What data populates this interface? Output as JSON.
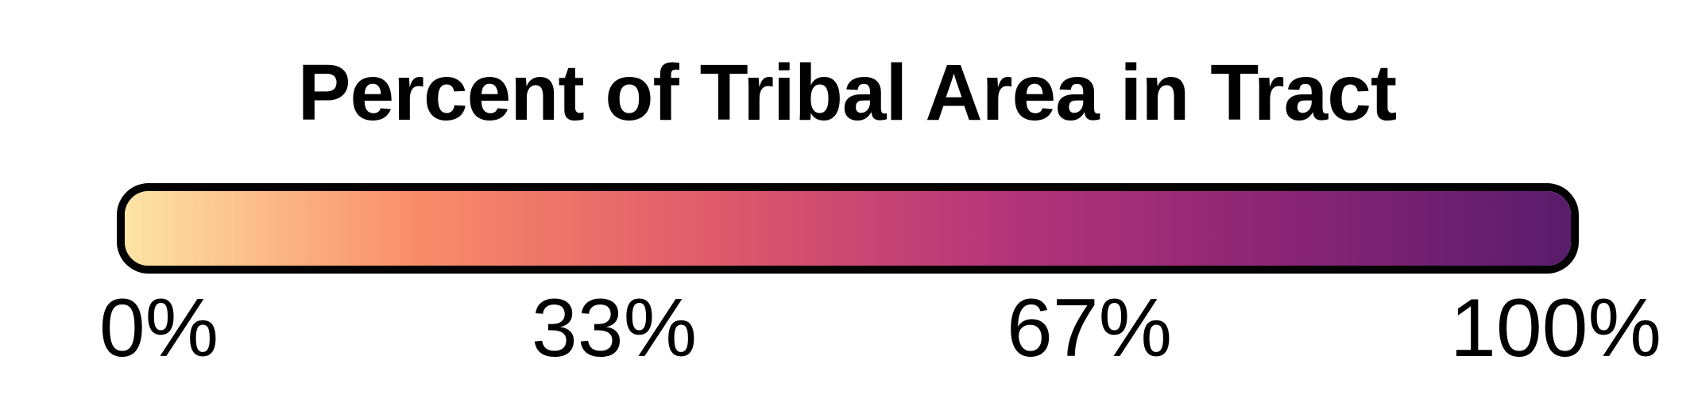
{
  "legend": {
    "title": "Percent of Tribal Area in Tract",
    "min_label": "0%",
    "max_label": "100%",
    "ticks": [
      "0%",
      "33%",
      "67%",
      "100%"
    ],
    "gradient_stops": [
      {
        "offset": 0.0,
        "color": "#fde4a5"
      },
      {
        "offset": 0.2,
        "color": "#f98d6a"
      },
      {
        "offset": 0.4,
        "color": "#e05c6b"
      },
      {
        "offset": 0.6,
        "color": "#b63679"
      },
      {
        "offset": 0.8,
        "color": "#8a2574"
      },
      {
        "offset": 1.0,
        "color": "#591c6c"
      }
    ],
    "border_color": "#000000"
  }
}
